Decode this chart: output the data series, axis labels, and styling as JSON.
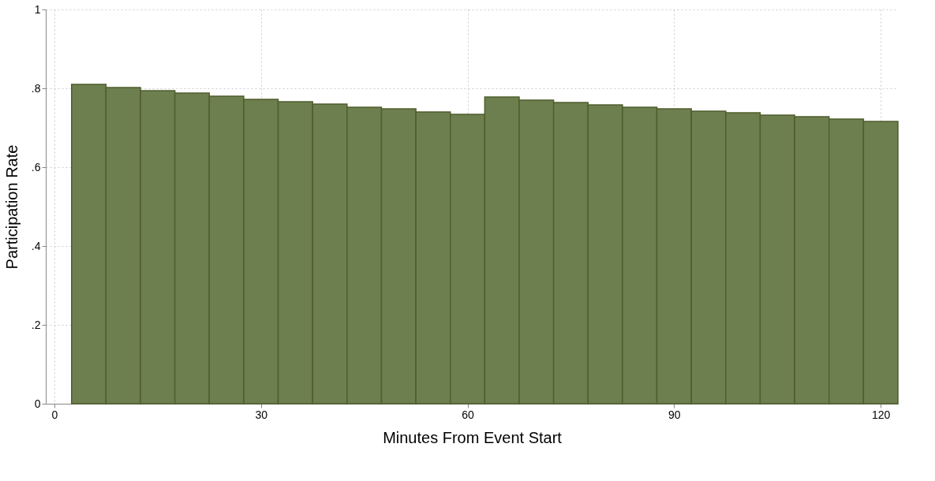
{
  "chart_data": {
    "type": "histogram",
    "xlabel": "Minutes From Event Start",
    "ylabel": "Participation Rate",
    "bins": [
      2.5,
      7.5,
      12.5,
      17.5,
      22.5,
      27.5,
      32.5,
      37.5,
      42.5,
      47.5,
      52.5,
      57.5,
      62.5,
      67.5,
      72.5,
      77.5,
      82.5,
      87.5,
      92.5,
      97.5,
      102.5,
      107.5,
      112.5,
      117.5,
      122.5
    ],
    "values": [
      0.81,
      0.802,
      0.794,
      0.788,
      0.78,
      0.772,
      0.766,
      0.76,
      0.752,
      0.748,
      0.74,
      0.734,
      0.778,
      0.77,
      0.764,
      0.758,
      0.752,
      0.748,
      0.742,
      0.738,
      0.732,
      0.728,
      0.722,
      0.716
    ],
    "color": "#6e7f4f",
    "xlim": [
      -1.25,
      122.5
    ],
    "xticks": [
      0,
      30,
      60,
      90,
      120
    ],
    "ylim": [
      0,
      1
    ],
    "yticks": [
      {
        "value": 0,
        "label": "0"
      },
      {
        "value": 0.2,
        "label": ".2"
      },
      {
        "value": 0.4,
        "label": ".4"
      },
      {
        "value": 0.6,
        "label": ".6"
      },
      {
        "value": 0.8,
        "label": ".8"
      },
      {
        "value": 1,
        "label": "1"
      }
    ],
    "grid": true
  }
}
